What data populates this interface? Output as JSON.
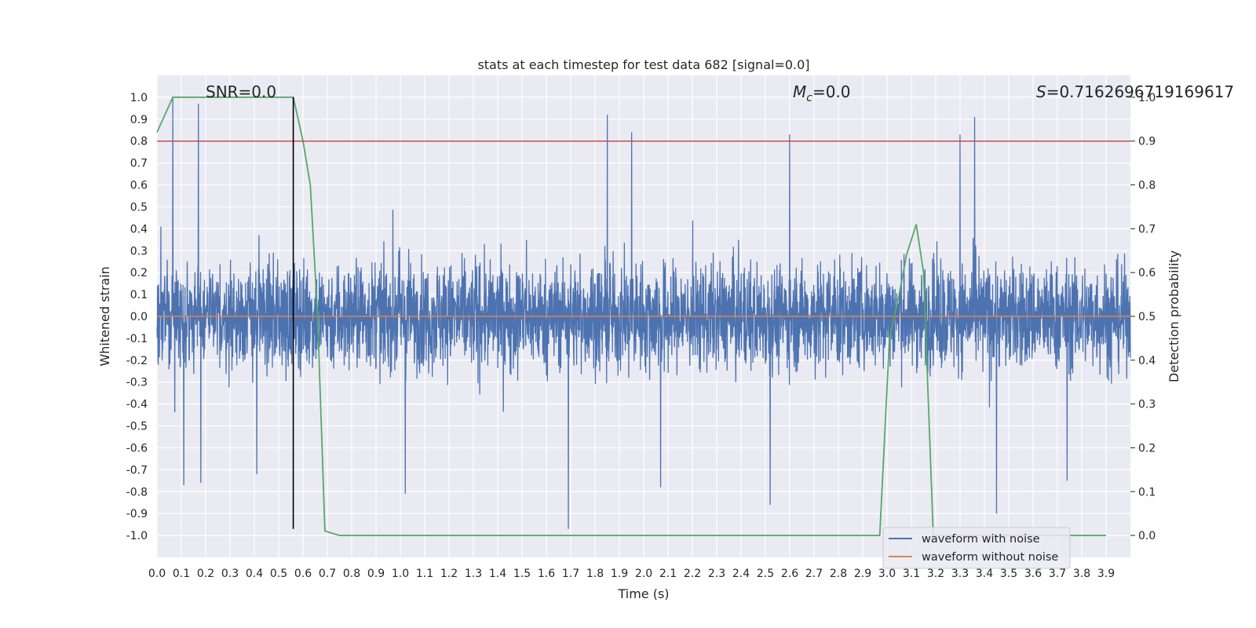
{
  "chart_data": {
    "type": "line",
    "title": "stats at each timestep for test data 682 [signal=0.0]",
    "xlabel": "Time (s)",
    "ylabel_left": "Whitened strain",
    "ylabel_right": "Detection probability",
    "xlim": [
      0.0,
      4.0
    ],
    "ylim_left": [
      -1.1,
      1.1
    ],
    "ylim_right": [
      -0.05,
      1.05
    ],
    "grid": true,
    "x_ticks": [
      "0.0",
      "0.1",
      "0.2",
      "0.3",
      "0.4",
      "0.5",
      "0.6",
      "0.7",
      "0.8",
      "0.9",
      "1.0",
      "1.1",
      "1.2",
      "1.3",
      "1.4",
      "1.5",
      "1.6",
      "1.7",
      "1.8",
      "1.9",
      "2.0",
      "2.1",
      "2.2",
      "2.3",
      "2.4",
      "2.5",
      "2.6",
      "2.7",
      "2.8",
      "2.9",
      "3.0",
      "3.1",
      "3.2",
      "3.3",
      "3.4",
      "3.5",
      "3.6",
      "3.7",
      "3.8",
      "3.9"
    ],
    "y_ticks_left": [
      "1.0",
      "0.9",
      "0.8",
      "0.7",
      "0.6",
      "0.5",
      "0.4",
      "0.3",
      "0.2",
      "0.1",
      "0.0",
      "-0.1",
      "-0.2",
      "-0.3",
      "-0.4",
      "-0.5",
      "-0.6",
      "-0.7",
      "-0.8",
      "-0.9",
      "-1.0"
    ],
    "y_ticks_right": [
      "1.0",
      "0.9",
      "0.8",
      "0.7",
      "0.6",
      "0.5",
      "0.4",
      "0.3",
      "0.2",
      "0.1",
      "0.0"
    ],
    "annotations": {
      "snr": "SNR=0.0",
      "mc_symbol": "M",
      "mc_sub": "c",
      "mc_value": "=0.0",
      "s_symbol": "S",
      "s_value": "=0.7162696719169617"
    },
    "legend": {
      "position": "lower-right",
      "entries": [
        "waveform with noise",
        "waveform without noise"
      ]
    },
    "series": [
      {
        "name": "waveform with noise",
        "axis": "left",
        "color": "#4c72b0",
        "samples": 4000,
        "noise_band": [
          -0.45,
          0.45
        ],
        "peaks": [
          {
            "x": 0.065,
            "y": 1.0
          },
          {
            "x": 0.17,
            "y": 0.97
          },
          {
            "x": 0.11,
            "y": -0.77
          },
          {
            "x": 0.18,
            "y": -0.76
          },
          {
            "x": 1.85,
            "y": 0.92
          },
          {
            "x": 1.95,
            "y": 0.84
          },
          {
            "x": 2.6,
            "y": 0.83
          },
          {
            "x": 3.3,
            "y": 0.83
          },
          {
            "x": 3.36,
            "y": 0.91
          },
          {
            "x": 1.69,
            "y": -0.97
          },
          {
            "x": 1.02,
            "y": -0.81
          },
          {
            "x": 2.07,
            "y": -0.78
          },
          {
            "x": 2.52,
            "y": -0.86
          },
          {
            "x": 3.45,
            "y": -0.9
          },
          {
            "x": 0.41,
            "y": -0.72
          },
          {
            "x": 3.74,
            "y": -0.75
          }
        ]
      },
      {
        "name": "waveform without noise",
        "axis": "left",
        "color": "#dd8452",
        "x": [
          0.0,
          4.0
        ],
        "y": [
          0.0,
          0.0
        ]
      },
      {
        "axis": "right",
        "color": "#55a868",
        "x": [
          0.0,
          0.065,
          0.1,
          0.13,
          0.17,
          0.2,
          0.3,
          0.4,
          0.5,
          0.56,
          0.6,
          0.63,
          0.66,
          0.69,
          0.75,
          0.8,
          1.0,
          2.0,
          2.9,
          2.97,
          3.01,
          3.05,
          3.08,
          3.12,
          3.15,
          3.19,
          3.3,
          3.9
        ],
        "y": [
          0.92,
          1.0,
          1.0,
          1.0,
          1.0,
          1.0,
          1.0,
          1.0,
          1.0,
          1.0,
          0.9,
          0.8,
          0.5,
          0.01,
          0.0,
          0.0,
          0.0,
          0.0,
          0.0,
          0.0,
          0.45,
          0.55,
          0.64,
          0.71,
          0.6,
          0.0,
          0.0,
          0.0
        ]
      }
    ],
    "hlines": [
      {
        "axis": "right",
        "y": 0.9,
        "color": "#c44e52"
      }
    ],
    "vlines": [
      {
        "x": 0.56,
        "y_range": [
          -0.97,
          1.0
        ],
        "color": "#000000"
      }
    ]
  }
}
